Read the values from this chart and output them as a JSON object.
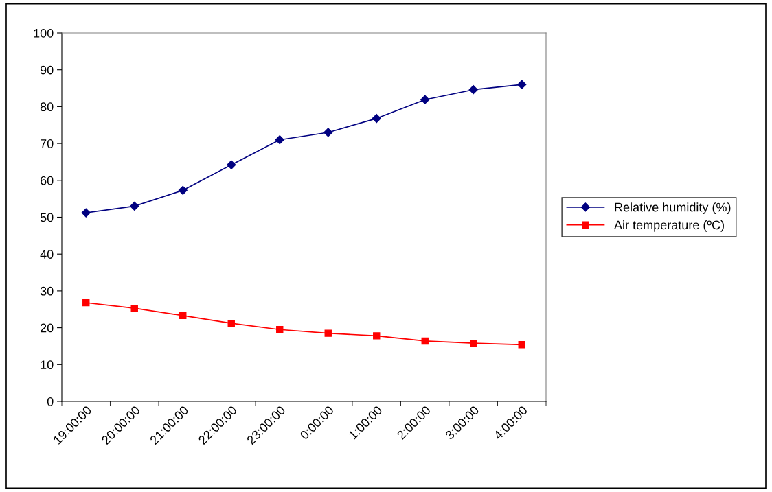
{
  "chart_data": {
    "type": "line",
    "categories": [
      "19:00:00",
      "20:00:00",
      "21:00:00",
      "22:00:00",
      "23:00:00",
      "0:00:00",
      "1:00:00",
      "2:00:00",
      "3:00:00",
      "4:00:00"
    ],
    "series": [
      {
        "name": "Relative humidity (%)",
        "color": "#000080",
        "marker": "diamond",
        "values": [
          51.2,
          53.0,
          57.3,
          64.2,
          71.0,
          73.0,
          76.8,
          81.9,
          84.6,
          86.0
        ]
      },
      {
        "name": "Air temperature (ºC)",
        "color": "#ff0000",
        "marker": "square",
        "values": [
          26.8,
          25.3,
          23.3,
          21.2,
          19.5,
          18.5,
          17.8,
          16.4,
          15.8,
          15.4
        ]
      }
    ],
    "ylim": [
      0,
      100
    ],
    "yticks": [
      0,
      10,
      20,
      30,
      40,
      50,
      60,
      70,
      80,
      90,
      100
    ],
    "grid": false,
    "legend": "right",
    "line_style": "solid"
  }
}
